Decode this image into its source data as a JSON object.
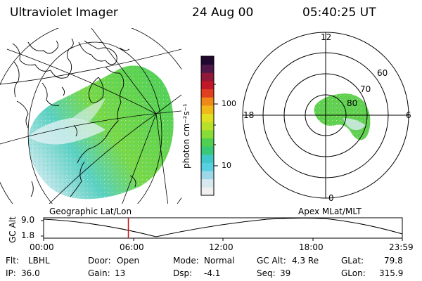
{
  "header": {
    "instrument": "Ultraviolet Imager",
    "date": "24 Aug 00",
    "time": "05:40:25 UT"
  },
  "colorbar": {
    "label": "photon cm⁻²s⁻¹",
    "ticks": [
      "100",
      "10"
    ],
    "scale": "log",
    "colors": [
      "#f0f0f0",
      "#d8e8f0",
      "#9ed8e8",
      "#58d0e0",
      "#40c8c8",
      "#38c878",
      "#50d050",
      "#88dc38",
      "#b8e028",
      "#e0e020",
      "#f0b818",
      "#f08818",
      "#e04020",
      "#c01828",
      "#901838",
      "#501848",
      "#200830"
    ]
  },
  "polar": {
    "mlt_labels": {
      "top": "12",
      "right": "6",
      "left": "18",
      "bottom": "0"
    },
    "lat_labels": [
      "60",
      "70",
      "80"
    ]
  },
  "panel_labels": {
    "left": "Geographic Lat/Lon",
    "right": "Apex MLat/MLT"
  },
  "altitude_plot": {
    "ylabel": "GC Alt",
    "yticks": [
      "9.0",
      "1.8"
    ],
    "xticks": [
      "00:00",
      "06:00",
      "12:00",
      "18:00",
      "23:59"
    ],
    "marker_time": "05:40",
    "marker_color": "#d01010"
  },
  "info": {
    "filter_key": "Flt:",
    "filter_val": "LBHL",
    "ip_key": "IP:",
    "ip_val": "36.0",
    "door_key": "Door:",
    "door_val": "Open",
    "gain_key": "Gain:",
    "gain_val": "13",
    "mode_key": "Mode:",
    "mode_val": "Normal",
    "dsp_key": "Dsp:",
    "dsp_val": "-4.1",
    "gcalt_key": "GC Alt:",
    "gcalt_val": "4.3 Re",
    "seq_key": "Seq:",
    "seq_val": "39",
    "glat_key": "GLat:",
    "glat_val": "79.8",
    "glon_key": "GLon:",
    "glon_val": "315.9"
  }
}
